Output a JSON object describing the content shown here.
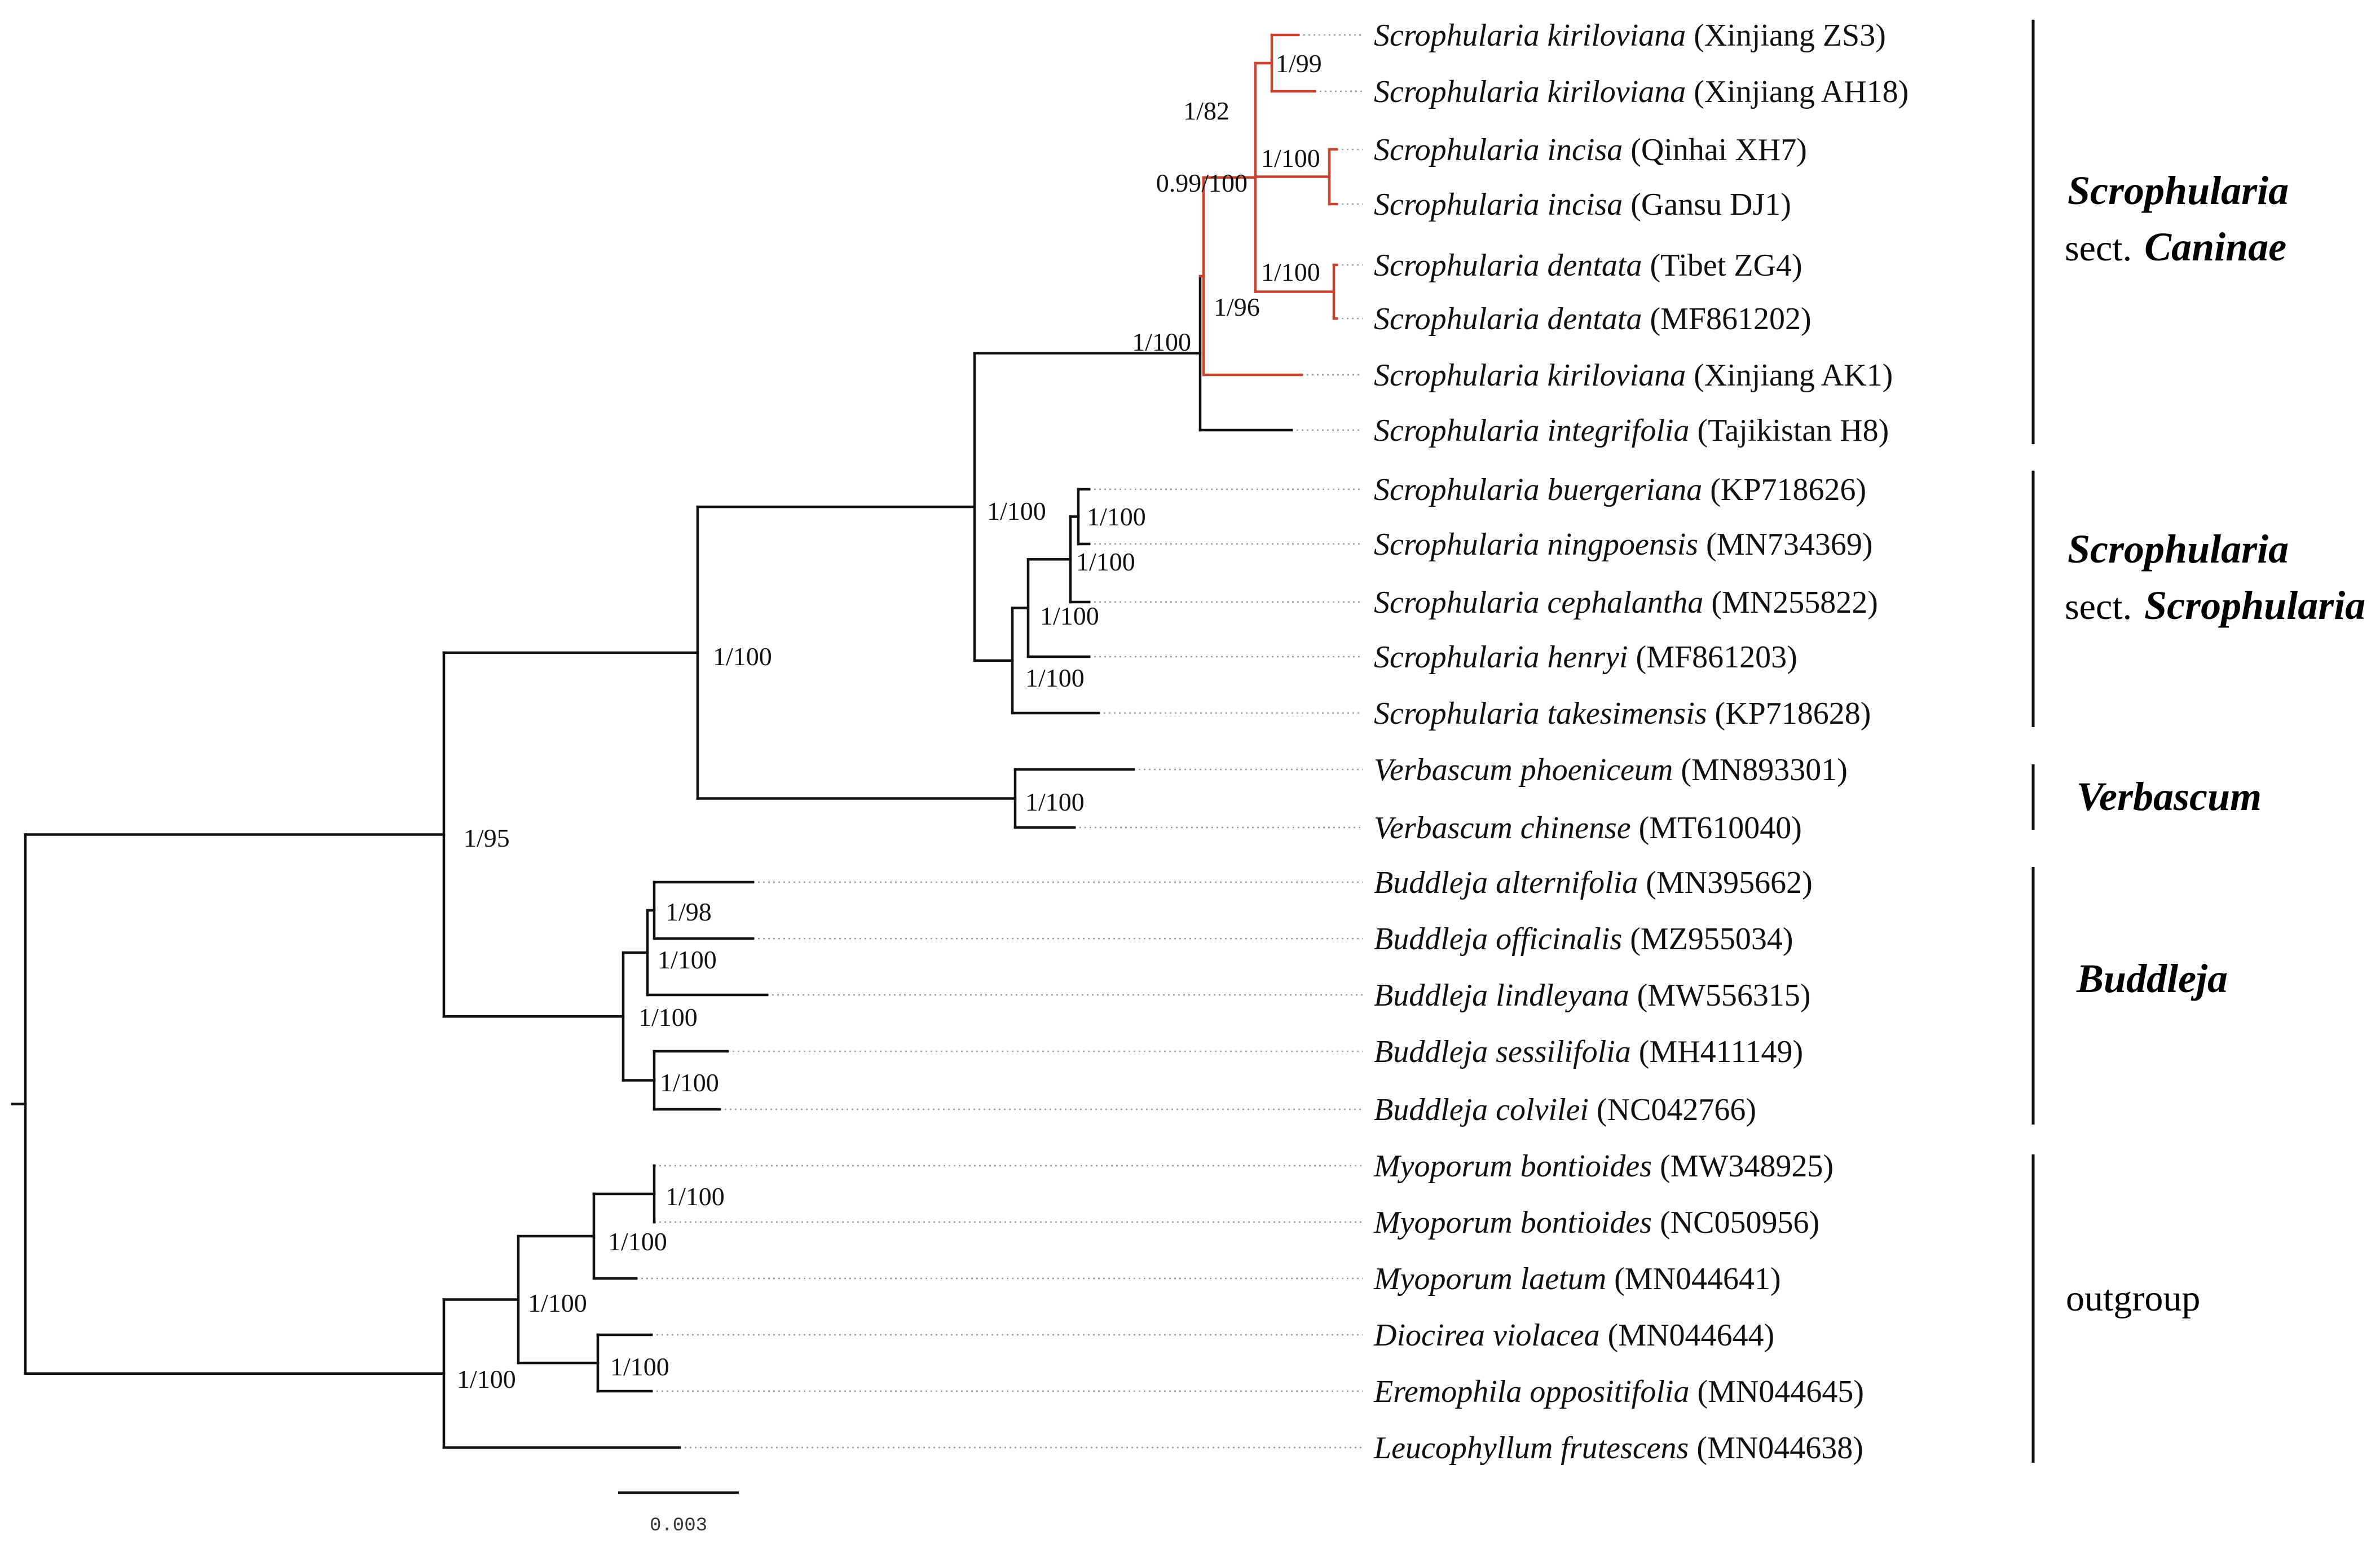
{
  "figure": {
    "type": "phylogenetic-tree",
    "colors": {
      "default_branch": "#111111",
      "highlight_branch": "#c8442e",
      "leader": "#9a9a9a"
    }
  },
  "taxa": [
    {
      "id": "t1",
      "name": "Scrophularia kiriloviana",
      "accession": "(Xinjiang ZS3)"
    },
    {
      "id": "t2",
      "name": "Scrophularia kiriloviana",
      "accession": "(Xinjiang AH18)"
    },
    {
      "id": "t3",
      "name": "Scrophularia incisa",
      "accession": "(Qinhai XH7)"
    },
    {
      "id": "t4",
      "name": "Scrophularia incisa",
      "accession": "(Gansu DJ1)"
    },
    {
      "id": "t5",
      "name": "Scrophularia dentata",
      "accession": "(Tibet ZG4)"
    },
    {
      "id": "t6",
      "name": "Scrophularia dentata",
      "accession": "(MF861202)"
    },
    {
      "id": "t7",
      "name": "Scrophularia kiriloviana",
      "accession": "(Xinjiang AK1)"
    },
    {
      "id": "t8",
      "name": "Scrophularia integrifolia",
      "accession": "(Tajikistan H8)"
    },
    {
      "id": "t9",
      "name": "Scrophularia buergeriana",
      "accession": "(KP718626)"
    },
    {
      "id": "t10",
      "name": "Scrophularia ningpoensis",
      "accession": "(MN734369)"
    },
    {
      "id": "t11",
      "name": "Scrophularia cephalantha",
      "accession": "(MN255822)"
    },
    {
      "id": "t12",
      "name": "Scrophularia henryi",
      "accession": "(MF861203)"
    },
    {
      "id": "t13",
      "name": "Scrophularia takesimensis",
      "accession": "(KP718628)"
    },
    {
      "id": "t14",
      "name": "Verbascum phoeniceum",
      "accession": "(MN893301)"
    },
    {
      "id": "t15",
      "name": "Verbascum chinense",
      "accession": "(MT610040)"
    },
    {
      "id": "t16",
      "name": "Buddleja alternifolia",
      "accession": "(MN395662)"
    },
    {
      "id": "t17",
      "name": "Buddleja officinalis",
      "accession": "(MZ955034)"
    },
    {
      "id": "t18",
      "name": "Buddleja lindleyana",
      "accession": "(MW556315)"
    },
    {
      "id": "t19",
      "name": "Buddleja sessilifolia",
      "accession": "(MH411149)"
    },
    {
      "id": "t20",
      "name": "Buddleja colvilei",
      "accession": "(NC042766)"
    },
    {
      "id": "t21",
      "name": "Myoporum bontioides",
      "accession": "(MW348925)"
    },
    {
      "id": "t22",
      "name": "Myoporum bontioides",
      "accession": "(NC050956)"
    },
    {
      "id": "t23",
      "name": "Myoporum laetum",
      "accession": "(MN044641)"
    },
    {
      "id": "t24",
      "name": "Diocirea violacea",
      "accession": "(MN044644)"
    },
    {
      "id": "t25",
      "name": "Eremophila oppositifolia",
      "accession": "(MN044645)"
    },
    {
      "id": "t26",
      "name": "Leucophyllum frutescens",
      "accession": "(MN044638)"
    }
  ],
  "nodes": [
    {
      "id": "n-ks",
      "support": "1/99"
    },
    {
      "id": "n-inc",
      "support": "1/100"
    },
    {
      "id": "n-den",
      "support": "1/100"
    },
    {
      "id": "n-kid",
      "support": "1/82"
    },
    {
      "id": "n-red",
      "support": "0.99/100"
    },
    {
      "id": "n-redak1",
      "support": "1/96"
    },
    {
      "id": "n-caninae",
      "support": "1/100"
    },
    {
      "id": "n-bn",
      "support": "1/100"
    },
    {
      "id": "n-bnc",
      "support": "1/100"
    },
    {
      "id": "n-bnch",
      "support": "1/100"
    },
    {
      "id": "n-bncht",
      "support": "1/100"
    },
    {
      "id": "n-scroph",
      "support": "1/100"
    },
    {
      "id": "n-verb",
      "support": "1/100"
    },
    {
      "id": "n-sv",
      "support": "1/100"
    },
    {
      "id": "n-b12",
      "support": "1/98"
    },
    {
      "id": "n-b123",
      "support": "1/100"
    },
    {
      "id": "n-b45",
      "support": "1/100"
    },
    {
      "id": "n-budd",
      "support": "1/100"
    },
    {
      "id": "n-ingroup",
      "support": "1/95"
    },
    {
      "id": "n-myo12",
      "support": "1/100"
    },
    {
      "id": "n-myo",
      "support": "1/100"
    },
    {
      "id": "n-de",
      "support": "1/100"
    },
    {
      "id": "n-mde",
      "support": "1/100"
    },
    {
      "id": "n-outgroup",
      "support": "1/100"
    }
  ],
  "clades": [
    {
      "id": "caninae",
      "genus": "Scrophularia",
      "section_prefix": "sect.",
      "section": "Caninae"
    },
    {
      "id": "scrophularia",
      "genus": "Scrophularia",
      "section_prefix": "sect.",
      "section": "Scrophularia"
    },
    {
      "id": "verbascum",
      "genus": "Verbascum"
    },
    {
      "id": "buddleja",
      "genus": "Buddleja"
    },
    {
      "id": "outgroup",
      "label": "outgroup"
    }
  ],
  "scale_bar": {
    "label": "0.003",
    "value": 0.003
  }
}
